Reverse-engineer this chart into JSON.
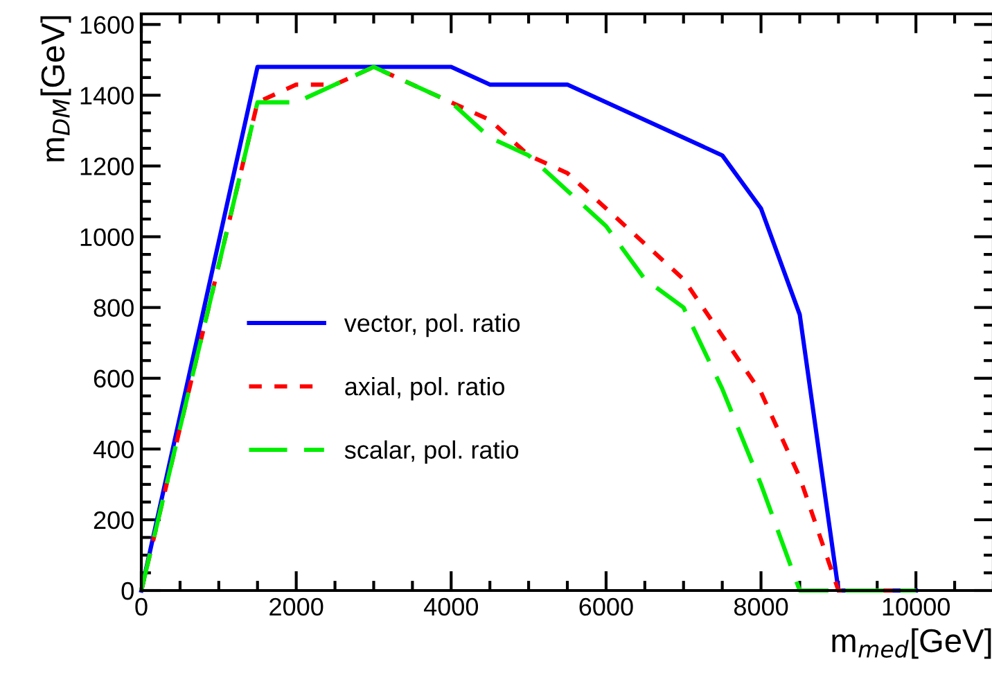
{
  "chart_data": {
    "type": "line",
    "xlabel": "m$_{med}$[GeV]",
    "ylabel": "m$_{DM}$[GeV]",
    "xlim": [
      0,
      11000
    ],
    "ylim": [
      0,
      1630
    ],
    "xticks": [
      0,
      2000,
      4000,
      6000,
      8000,
      10000
    ],
    "yticks": [
      0,
      200,
      400,
      600,
      800,
      1000,
      1200,
      1400,
      1600
    ],
    "legend": "left",
    "grid": false,
    "series": [
      {
        "name": "vector, pol. ratio",
        "color": "#0000ff",
        "line_style": "solid",
        "x": [
          0,
          1500,
          4000,
          4500,
          5500,
          7500,
          8000,
          8500,
          9000,
          10000
        ],
        "values": [
          0,
          1480,
          1480,
          1430,
          1430,
          1230,
          1080,
          780,
          0,
          0
        ]
      },
      {
        "name": "axial, pol. ratio",
        "color": "#ff0000",
        "line_style": "dotted",
        "x": [
          0,
          1500,
          2000,
          2500,
          3000,
          4000,
          4500,
          5000,
          5500,
          6000,
          6500,
          7000,
          7500,
          8000,
          8500,
          9000,
          10000
        ],
        "values": [
          0,
          1380,
          1430,
          1430,
          1480,
          1380,
          1330,
          1230,
          1180,
          1080,
          980,
          880,
          720,
          560,
          320,
          0,
          0
        ]
      },
      {
        "name": "scalar, pol. ratio",
        "color": "#00ee00",
        "line_style": "dashed",
        "x": [
          0,
          1500,
          2000,
          3000,
          4000,
          4500,
          5000,
          5500,
          6000,
          6500,
          7000,
          7500,
          8000,
          8500,
          10000
        ],
        "values": [
          0,
          1380,
          1380,
          1480,
          1380,
          1280,
          1230,
          1130,
          1030,
          880,
          800,
          570,
          300,
          0,
          0
        ]
      }
    ]
  }
}
